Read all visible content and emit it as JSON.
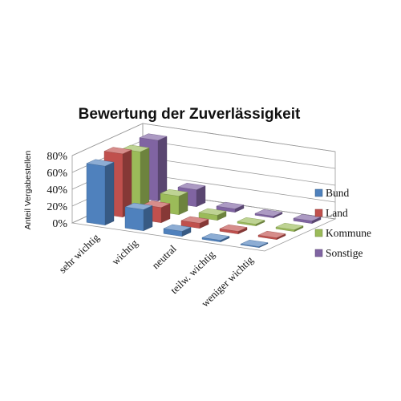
{
  "chart_data": {
    "type": "bar",
    "title": "Bewertung der Zuverlässigkeit",
    "ylabel": "Anteil Vergabestellen",
    "xlabel": "",
    "categories": [
      "sehr wichtig",
      "wichtig",
      "neutral",
      "teilw. wichtig",
      "weniger wichtig"
    ],
    "yticks": [
      "0%",
      "20%",
      "40%",
      "60%",
      "80%"
    ],
    "ylim": [
      0,
      80
    ],
    "series": [
      {
        "name": "Bund",
        "color": "#4f81bd",
        "values": [
          70,
          25,
          6,
          2,
          1
        ]
      },
      {
        "name": "Land",
        "color": "#c0504d",
        "values": [
          75,
          18,
          6,
          3,
          2
        ]
      },
      {
        "name": "Kommune",
        "color": "#9bbb59",
        "values": [
          68,
          22,
          6,
          2,
          2
        ]
      },
      {
        "name": "Sonstige",
        "color": "#8064a2",
        "values": [
          72,
          20,
          4,
          2,
          3
        ]
      }
    ],
    "legend": "right",
    "grid": true,
    "style": "3d-column"
  }
}
